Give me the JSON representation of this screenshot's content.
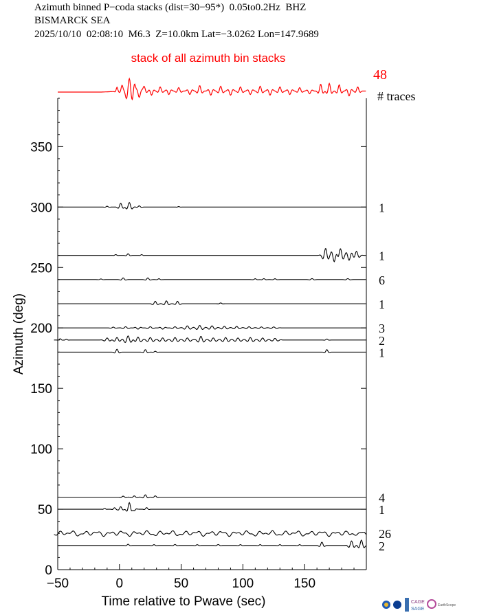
{
  "header": {
    "line1": "Azimuth binned P−coda stacks (dist=30−95*)  0.05to0.2Hz  BHZ",
    "line2": "BISMARCK SEA",
    "line3": "2025/10/10  02:08:10  M6.3  Z=10.0km Lat=−3.0262 Lon=147.9689"
  },
  "logos": [
    "CAGE SAGE",
    "EarthScope"
  ],
  "chart_data": {
    "type": "line",
    "title": "stack of all azimuth bin stacks",
    "xlabel": "Time relative to Pwave (sec)",
    "ylabel": "Azimuth (deg)",
    "xlim": [
      -50,
      200
    ],
    "ylim": [
      0,
      390
    ],
    "xticks": [
      -50,
      0,
      50,
      100,
      150
    ],
    "xtick_labels": [
      "−50",
      "0",
      "50",
      "100",
      "150"
    ],
    "yticks": [
      0,
      50,
      100,
      150,
      200,
      250,
      300,
      350
    ],
    "count_header": "# traces",
    "colors": {
      "stack": "#ff0000",
      "traces": "#000000",
      "axes": "#000000"
    },
    "stack": {
      "name": "stack of all azimuth bin stacks",
      "count": "48",
      "features": [
        [
          -2,
          0.9,
          0.6
        ],
        [
          2,
          1.1,
          0.8
        ],
        [
          8,
          2.5,
          1.8
        ],
        [
          12,
          1.2,
          0.9
        ],
        [
          16,
          1.8,
          -0.9
        ],
        [
          20,
          1.5,
          0.7
        ],
        [
          26,
          1.3,
          -0.6
        ],
        [
          33,
          1.5,
          0.6
        ],
        [
          40,
          1.5,
          -0.5
        ],
        [
          48,
          1.6,
          0.5
        ],
        [
          57,
          1.6,
          -0.5
        ],
        [
          65,
          1.6,
          0.8
        ],
        [
          74,
          1.6,
          -0.6
        ],
        [
          82,
          1.6,
          0.7
        ],
        [
          90,
          1.6,
          -0.6
        ],
        [
          98,
          1.6,
          0.6
        ],
        [
          106,
          1.6,
          -0.5
        ],
        [
          114,
          1.6,
          0.7
        ],
        [
          122,
          1.6,
          -0.6
        ],
        [
          130,
          1.6,
          0.6
        ],
        [
          138,
          1.6,
          -0.5
        ],
        [
          146,
          1.6,
          0.5
        ],
        [
          154,
          1.6,
          -0.4
        ],
        [
          163,
          1.5,
          1.0
        ],
        [
          170,
          1.5,
          1.1
        ],
        [
          178,
          1.5,
          0.9
        ],
        [
          186,
          1.5,
          -0.7
        ],
        [
          193,
          1.5,
          0.6
        ]
      ]
    },
    "traces": [
      {
        "azimuth": 300,
        "count": "1",
        "start": -50,
        "wiggle": [
          [
            -10,
            1.2,
            0.1
          ],
          [
            1,
            1.6,
            0.45
          ],
          [
            8,
            1.8,
            0.55
          ],
          [
            16,
            1.3,
            0.15
          ],
          [
            48,
            1.0,
            0.06
          ]
        ]
      },
      {
        "azimuth": 260,
        "count": "1",
        "start": -50,
        "wiggle": [
          [
            -3,
            1.0,
            0.1
          ],
          [
            7,
            1.3,
            0.2
          ],
          [
            18,
            1.0,
            0.1
          ],
          [
            167,
            2.0,
            0.85
          ],
          [
            174,
            2.0,
            -0.8
          ],
          [
            179,
            2.0,
            0.85
          ],
          [
            186,
            2.0,
            -0.6
          ],
          [
            192,
            2.0,
            0.5
          ]
        ]
      },
      {
        "azimuth": 240,
        "count": "6",
        "start": -50,
        "wiggle": [
          [
            -15,
            1.2,
            0.08
          ],
          [
            3,
            1.5,
            0.2
          ],
          [
            23,
            1.5,
            0.2
          ],
          [
            32,
            1.2,
            0.1
          ],
          [
            110,
            1.3,
            0.1
          ],
          [
            117,
            1.3,
            0.12
          ],
          [
            126,
            1.3,
            0.1
          ],
          [
            156,
            1.5,
            0.12
          ],
          [
            185,
            1.5,
            0.12
          ]
        ]
      },
      {
        "azimuth": 220,
        "count": "1",
        "start": -50,
        "wiggle": [
          [
            29,
            1.6,
            0.3
          ],
          [
            38,
            1.6,
            0.35
          ],
          [
            47,
            1.5,
            0.3
          ],
          [
            82,
            1.2,
            0.1
          ]
        ]
      },
      {
        "azimuth": 200,
        "count": "3",
        "start": -50,
        "wiggle": [
          [
            -5,
            1.5,
            0.1
          ],
          [
            5,
            2,
            0.15
          ],
          [
            15,
            2,
            -0.15
          ],
          [
            25,
            2,
            0.15
          ],
          [
            35,
            2,
            -0.15
          ],
          [
            45,
            2,
            0.15
          ],
          [
            55,
            2.5,
            0.25
          ],
          [
            65,
            2.5,
            0.3
          ],
          [
            75,
            2.5,
            0.25
          ],
          [
            85,
            2.5,
            0.2
          ],
          [
            95,
            2.5,
            0.18
          ],
          [
            105,
            2.5,
            0.15
          ],
          [
            115,
            2.5,
            0.12
          ],
          [
            125,
            2.5,
            0.12
          ]
        ]
      },
      {
        "azimuth": 190,
        "count": "2",
        "start": -53,
        "wiggle": [
          [
            -48,
            1.0,
            0.15
          ],
          [
            -43,
            1.0,
            0.1
          ],
          [
            -10,
            2,
            0.25
          ],
          [
            -2,
            2,
            0.3
          ],
          [
            7,
            2.5,
            0.5
          ],
          [
            15,
            2.5,
            0.35
          ],
          [
            25,
            2.5,
            0.3
          ],
          [
            35,
            2.5,
            0.25
          ],
          [
            45,
            2.5,
            0.3
          ],
          [
            55,
            2.5,
            0.25
          ],
          [
            66,
            2.2,
            0.45
          ],
          [
            76,
            2.5,
            0.25
          ],
          [
            86,
            2.5,
            0.3
          ],
          [
            96,
            2.5,
            0.25
          ],
          [
            106,
            2.5,
            0.3
          ],
          [
            116,
            2.5,
            0.25
          ],
          [
            126,
            2.5,
            0.2
          ],
          [
            168,
            1.2,
            0.12
          ]
        ]
      },
      {
        "azimuth": 180,
        "count": "1",
        "start": -50,
        "wiggle": [
          [
            -2,
            1.5,
            0.35
          ],
          [
            21,
            1.3,
            0.3
          ],
          [
            29,
            1.2,
            0.1
          ],
          [
            168,
            1.3,
            0.3
          ]
        ]
      },
      {
        "azimuth": 60,
        "count": "4",
        "start": -50,
        "wiggle": [
          [
            3,
            1.3,
            0.12
          ],
          [
            12,
            1.5,
            0.15
          ],
          [
            21,
            1.5,
            0.28
          ],
          [
            29,
            1.3,
            0.15
          ]
        ]
      },
      {
        "azimuth": 50,
        "count": "1",
        "start": -50,
        "wiggle": [
          [
            -12,
            1.0,
            0.1
          ],
          [
            -4,
            1.2,
            0.18
          ],
          [
            1,
            1.5,
            0.3
          ],
          [
            8,
            1.5,
            0.8
          ],
          [
            12,
            1.2,
            -0.2
          ],
          [
            22,
            1.2,
            0.2
          ]
        ]
      },
      {
        "azimuth": 30,
        "count": "26",
        "start": -53,
        "wiggle": "dense"
      },
      {
        "azimuth": 20,
        "count": "2",
        "start": -50,
        "wiggle": [
          [
            7,
            1.2,
            0.15
          ],
          [
            28,
            1.3,
            0.1
          ],
          [
            45,
            1.3,
            0.12
          ],
          [
            63,
            1.3,
            0.1
          ],
          [
            80,
            1.3,
            0.12
          ],
          [
            98,
            1.3,
            0.1
          ],
          [
            114,
            1.3,
            0.1
          ],
          [
            130,
            1.3,
            0.1
          ],
          [
            146,
            1.3,
            0.1
          ],
          [
            164,
            1.5,
            0.4
          ],
          [
            188,
            1.8,
            0.55
          ],
          [
            196,
            1.8,
            0.65
          ]
        ]
      }
    ]
  }
}
